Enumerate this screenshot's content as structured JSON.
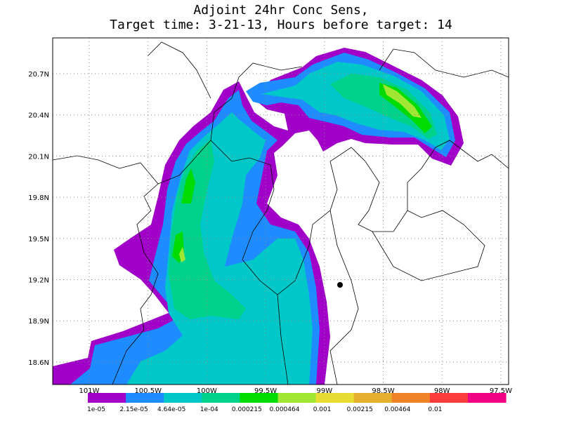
{
  "title": [
    "Adjoint 24hr Conc Sens,",
    "Target time: 3-21-13, Hours before target: 14"
  ],
  "lat_labels": [
    "20.7N",
    "20.4N",
    "20.1N",
    "19.8N",
    "19.5N",
    "19.2N",
    "18.9N",
    "18.6N"
  ],
  "lon_labels": [
    "101W",
    "100.5W",
    "100W",
    "99.5W",
    "99W",
    "98.5W",
    "98W",
    "97.5W"
  ],
  "colorbar": {
    "colors": [
      "#a000c8",
      "#1e8cff",
      "#00c8c8",
      "#00d28c",
      "#00dc00",
      "#a0e632",
      "#e6dc32",
      "#e6af2d",
      "#f08228",
      "#fa3c3c",
      "#f00082"
    ],
    "labels": [
      "1e-05",
      "2.15e-05",
      "4.64e-05",
      "1e-04",
      "0.000215",
      "0.000464",
      "0.001",
      "0.00215",
      "0.00464",
      "0.01"
    ]
  }
}
